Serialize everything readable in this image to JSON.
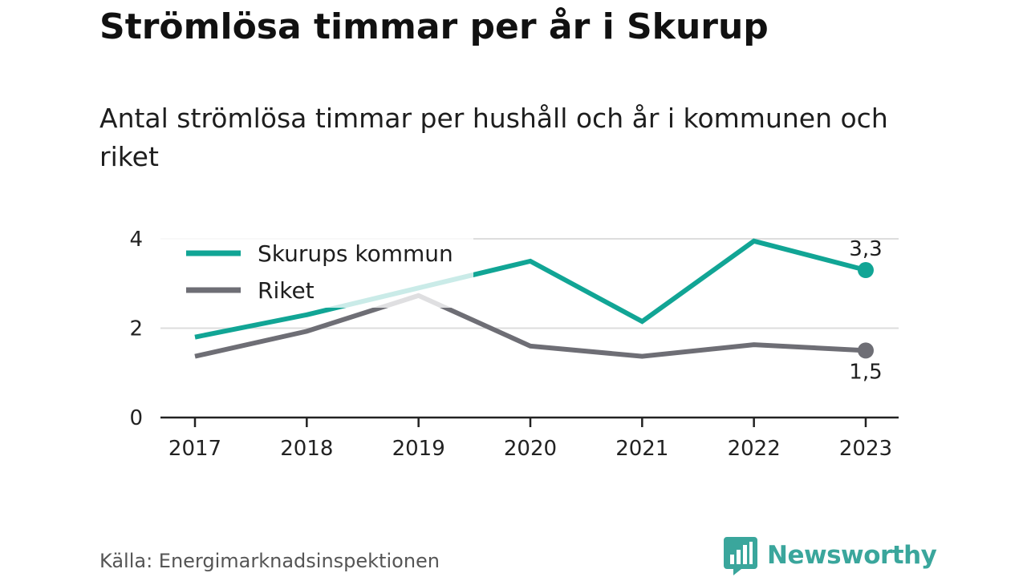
{
  "title": "Strömlösa timmar per år i Skurup",
  "subtitle": "Antal strömlösa timmar per hushåll och år i kommunen och riket",
  "source": "Källa: Energimarknadsinspektionen",
  "brand": {
    "name": "Newsworthy",
    "color": "#3aa69c",
    "logo": "newsworthy-logo-icon"
  },
  "colors": {
    "grid": "#dddddd",
    "axis": "#222222"
  },
  "chart_data": {
    "type": "line",
    "x": [
      "2017",
      "2018",
      "2019",
      "2020",
      "2021",
      "2022",
      "2023"
    ],
    "ylim": [
      0,
      4
    ],
    "yticks": [
      0,
      2,
      4
    ],
    "grid": "horizontal",
    "legend_position": "top-left",
    "series": [
      {
        "name": "Skurups kommun",
        "color": "#11a595",
        "values": [
          1.8,
          2.3,
          2.9,
          3.5,
          2.15,
          3.95,
          3.3
        ],
        "end_label": "3,3"
      },
      {
        "name": "Riket",
        "color": "#6e6e75",
        "values": [
          1.37,
          1.93,
          2.73,
          1.6,
          1.37,
          1.63,
          1.5
        ],
        "end_label": "1,5"
      }
    ]
  }
}
